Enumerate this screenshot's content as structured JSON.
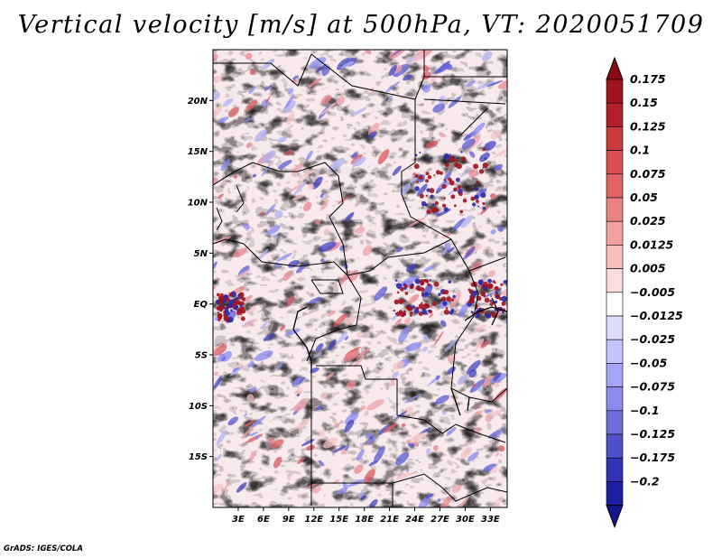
{
  "title": "Vertical velocity [m/s] at 500hPa, VT: 2020051709",
  "credit": "GrADS: IGES/COLA",
  "map": {
    "lon_range": [
      0,
      35
    ],
    "lat_range": [
      -20,
      25
    ],
    "lat_ticks": [
      {
        "value": 20,
        "label": "20N"
      },
      {
        "value": 15,
        "label": "15N"
      },
      {
        "value": 10,
        "label": "10N"
      },
      {
        "value": 5,
        "label": "5N"
      },
      {
        "value": 0,
        "label": "EQ"
      },
      {
        "value": -5,
        "label": "5S"
      },
      {
        "value": -10,
        "label": "10S"
      },
      {
        "value": -15,
        "label": "15S"
      }
    ],
    "lon_ticks": [
      {
        "value": 3,
        "label": "3E"
      },
      {
        "value": 6,
        "label": "6E"
      },
      {
        "value": 9,
        "label": "9E"
      },
      {
        "value": 12,
        "label": "12E"
      },
      {
        "value": 15,
        "label": "15E"
      },
      {
        "value": 18,
        "label": "18E"
      },
      {
        "value": 21,
        "label": "21E"
      },
      {
        "value": 24,
        "label": "24E"
      },
      {
        "value": 27,
        "label": "27E"
      },
      {
        "value": 30,
        "label": "30E"
      },
      {
        "value": 33,
        "label": "33E"
      }
    ]
  },
  "colorbar": {
    "levels": [
      {
        "label": "0.175",
        "color": "#a0141e"
      },
      {
        "label": "0.15",
        "color": "#b4202a"
      },
      {
        "label": "0.125",
        "color": "#c83c3c"
      },
      {
        "label": "0.1",
        "color": "#d75050"
      },
      {
        "label": "0.075",
        "color": "#e16464"
      },
      {
        "label": "0.05",
        "color": "#eb8282"
      },
      {
        "label": "0.025",
        "color": "#f5a0a0"
      },
      {
        "label": "0.0125",
        "color": "#fabebe"
      },
      {
        "label": "0.005",
        "color": "#ffdcdc"
      },
      {
        "label": "−0.005",
        "color": "#ffffff"
      },
      {
        "label": "−0.0125",
        "color": "#dcdcff"
      },
      {
        "label": "−0.025",
        "color": "#c3c3ff"
      },
      {
        "label": "−0.05",
        "color": "#a5a5fa"
      },
      {
        "label": "−0.075",
        "color": "#8c8cf0"
      },
      {
        "label": "−0.1",
        "color": "#6e6edc"
      },
      {
        "label": "−0.125",
        "color": "#5050c8"
      },
      {
        "label": "−0.175",
        "color": "#3232b4"
      },
      {
        "label": "−0.2",
        "color": "#1e1ea0"
      }
    ],
    "top_color": "#8c0a14",
    "bottom_color": "#14148c"
  }
}
